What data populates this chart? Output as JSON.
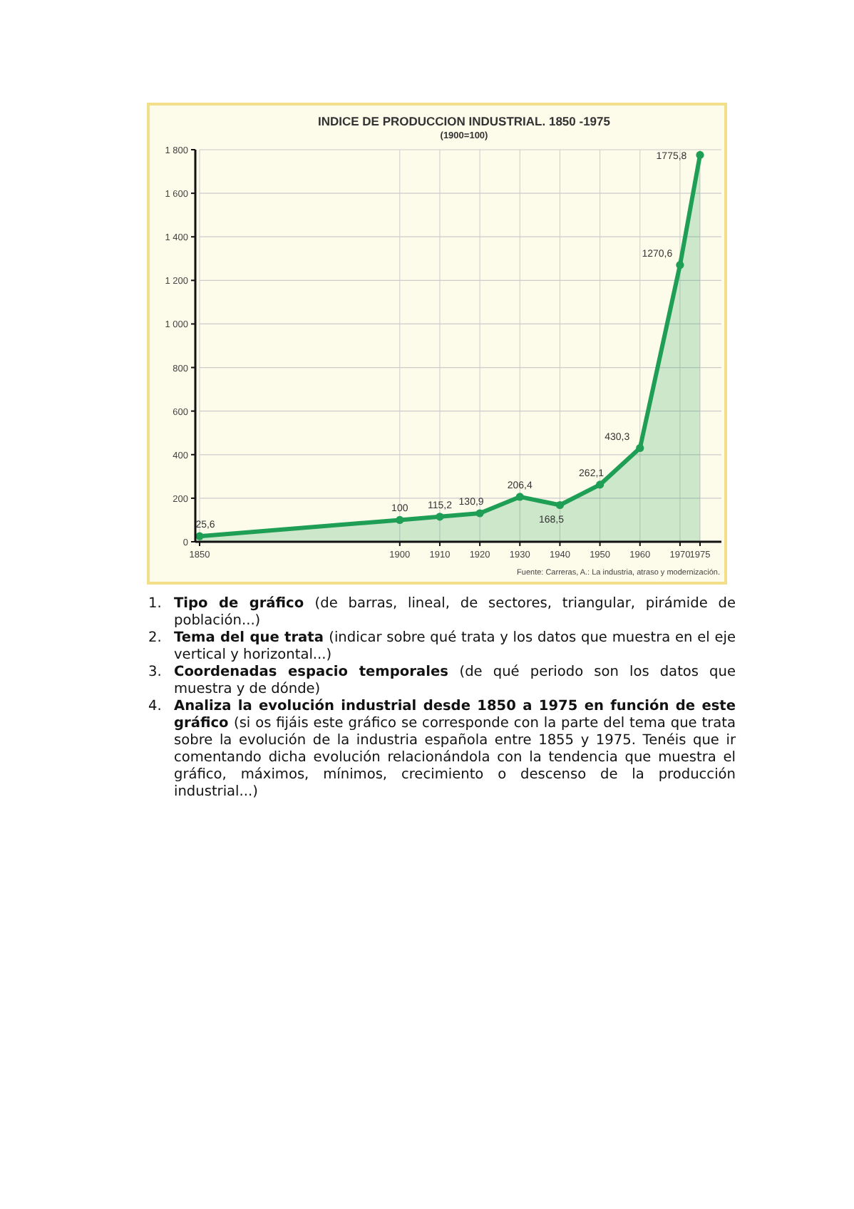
{
  "chart_data": {
    "type": "area",
    "title": "INDICE DE PRODUCCION INDUSTRIAL. 1850 -1975",
    "subtitle": "(1900=100)",
    "x": [
      1850,
      1900,
      1910,
      1920,
      1930,
      1940,
      1950,
      1960,
      1970,
      1975
    ],
    "series": [
      {
        "color": "#1f9e55",
        "values": [
          25.6,
          100,
          115.2,
          130.9,
          206.4,
          168.5,
          262.1,
          430.3,
          1270.6,
          1775.8
        ],
        "value_labels": [
          "25,6",
          "100",
          "115,2",
          "130,9",
          "206,4",
          "168,5",
          "262,1",
          "430,3",
          "1270,6",
          "1775,8"
        ]
      }
    ],
    "xlim": [
      1850,
      1975
    ],
    "xticks": [
      1850,
      1900,
      1910,
      1920,
      1930,
      1940,
      1950,
      1960,
      1970,
      1975
    ],
    "ylim": [
      0,
      1800
    ],
    "yticks": [
      0,
      200,
      400,
      600,
      800,
      {
        "value": 1000,
        "label": "1 000"
      },
      {
        "value": 1200,
        "label": "1 200"
      },
      {
        "value": 1400,
        "label": "1 400"
      },
      {
        "value": 1600,
        "label": "1 600"
      },
      {
        "value": 1800,
        "label": "1 800"
      }
    ],
    "grid": true,
    "marker": "circle",
    "annotations": [
      "Fuente: Carreras, A.: La industria, atraso y modernización.",
      "1. Tipo de gráfico (de barras, lineal, de sectores, triangular, pirámide de población...)",
      "2. Tema del que trata (indicar sobre qué trata y los datos que muestra en el eje vertical y horizontal...)",
      "3. Coordenadas espacio temporales (de qué periodo son los datos que muestra y de dónde)",
      "4. Analiza la evolución industrial desde 1850 a 1975 en función de este gráfico  (si os fijáis este gráfico se corresponde con la parte del tema que trata sobre la evolución de la industria española entre 1855 y 1975. Tenéis que ir comentando dicha evolución relacionándola con la tendencia que muestra el gráfico, máximos, mínimos, crecimiento o descenso de la producción industrial...)"
    ]
  }
}
